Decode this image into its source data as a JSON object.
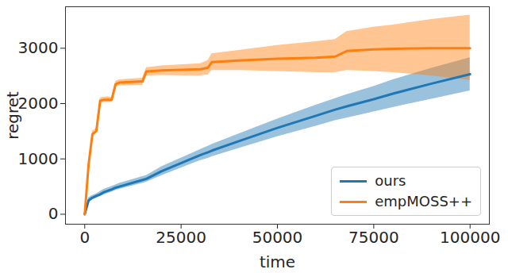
{
  "chart_data": {
    "type": "line",
    "xlabel": "time",
    "ylabel": "regret",
    "x": [
      0,
      1000,
      2000,
      3000,
      4000,
      5000,
      7000,
      8000,
      9000,
      15000,
      16000,
      20000,
      30000,
      32000,
      33000,
      40000,
      50000,
      60000,
      65000,
      68000,
      75000,
      80000,
      90000,
      100000
    ],
    "series": [
      {
        "name": "ours",
        "color": "#1f77b4",
        "values": [
          0,
          250,
          300,
          330,
          360,
          400,
          450,
          480,
          500,
          620,
          640,
          780,
          1070,
          1120,
          1150,
          1320,
          1560,
          1780,
          1890,
          1950,
          2080,
          2180,
          2360,
          2530
        ],
        "lower": [
          0,
          200,
          260,
          290,
          320,
          350,
          400,
          430,
          450,
          560,
          580,
          700,
          970,
          1010,
          1040,
          1190,
          1400,
          1590,
          1690,
          1740,
          1850,
          1930,
          2080,
          2230
        ],
        "upper": [
          0,
          300,
          340,
          370,
          410,
          450,
          500,
          530,
          560,
          680,
          700,
          860,
          1170,
          1230,
          1260,
          1450,
          1720,
          1970,
          2090,
          2160,
          2310,
          2430,
          2640,
          2830
        ]
      },
      {
        "name": "empMOSS++",
        "color": "#ff7f0e",
        "values": [
          0,
          900,
          1450,
          1500,
          2050,
          2070,
          2070,
          2350,
          2380,
          2400,
          2580,
          2600,
          2620,
          2650,
          2750,
          2780,
          2810,
          2830,
          2850,
          2950,
          2980,
          2990,
          3000,
          3000
        ],
        "lower": [
          0,
          850,
          1400,
          1450,
          2000,
          2020,
          2020,
          2300,
          2320,
          2330,
          2500,
          2510,
          2500,
          2520,
          2600,
          2600,
          2580,
          2560,
          2560,
          2600,
          2580,
          2560,
          2500,
          2420
        ],
        "upper": [
          0,
          950,
          1500,
          1550,
          2100,
          2120,
          2120,
          2400,
          2430,
          2460,
          2650,
          2680,
          2720,
          2780,
          2900,
          2960,
          3050,
          3120,
          3160,
          3300,
          3380,
          3420,
          3520,
          3600
        ]
      }
    ],
    "xlim": [
      -5000,
      105000
    ],
    "xticks": [
      0,
      25000,
      50000,
      75000,
      100000
    ],
    "ylim": [
      -180,
      3750
    ],
    "yticks": [
      0,
      1000,
      2000,
      3000
    ],
    "legend": "lower right",
    "grid": false
  }
}
